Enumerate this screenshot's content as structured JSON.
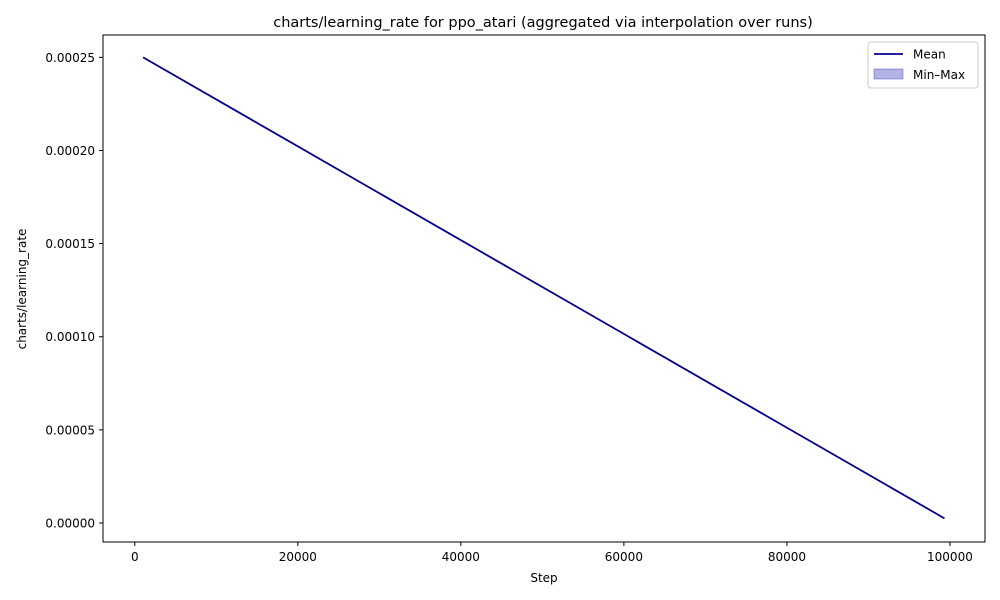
{
  "chart_data": {
    "type": "line",
    "title": "charts/learning_rate for ppo_atari (aggregated via interpolation over runs)",
    "xlabel": "Step",
    "ylabel": "charts/learning_rate",
    "xlim": [
      -3900,
      104300
    ],
    "ylim": [
      -1.02e-05,
      0.000262
    ],
    "xticks": [
      0,
      20000,
      40000,
      60000,
      80000,
      100000
    ],
    "xtick_labels": [
      "0",
      "20000",
      "40000",
      "60000",
      "80000",
      "100000"
    ],
    "yticks": [
      0,
      5e-05,
      0.0001,
      0.00015,
      0.0002,
      0.00025
    ],
    "ytick_labels": [
      "0.00000",
      "0.00005",
      "0.00010",
      "0.00015",
      "0.00020",
      "0.00025"
    ],
    "grid": false,
    "legend_position": "upper right",
    "series": [
      {
        "name": "Mean",
        "color": "#00008b",
        "x": [
          1024,
          99328
        ],
        "y": [
          0.00025,
          2.5e-06
        ]
      }
    ],
    "band": {
      "name": "Min–Max",
      "color": "#0000aa",
      "x": [
        1024,
        99328
      ],
      "y_min": [
        0.00025,
        2.5e-06
      ],
      "y_max": [
        0.00025,
        2.5e-06
      ]
    }
  }
}
